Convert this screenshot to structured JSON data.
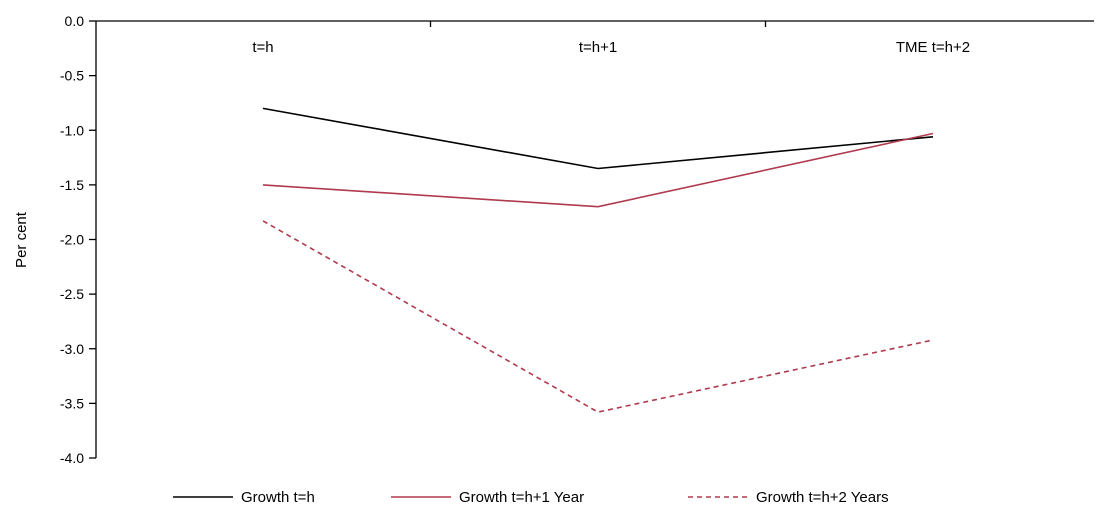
{
  "chart_data": {
    "type": "line",
    "categories": [
      "t=h",
      "t=h+1",
      "TME t=h+2"
    ],
    "ylabel": "Per cent",
    "ylim": [
      -4.0,
      0.0
    ],
    "yticks": [
      "0.0",
      "-0.5",
      "-1.0",
      "-1.5",
      "-2.0",
      "-2.5",
      "-3.0",
      "-3.5",
      "-4.0"
    ],
    "x_axis_position": "top",
    "grid": false,
    "legend_position": "bottom",
    "series": [
      {
        "name": "Growth t=h",
        "values": [
          -0.8,
          -1.35,
          -1.06
        ],
        "color": "#000000",
        "dash": "solid"
      },
      {
        "name": "Growth t=h+1  Year",
        "values": [
          -1.5,
          -1.7,
          -1.03
        ],
        "color": "#b03a4e",
        "dash": "solid"
      },
      {
        "name": "Growth t=h+2  Years",
        "values": [
          -1.83,
          -3.58,
          -2.92
        ],
        "color": "#b03a4e",
        "dash": "dashed"
      }
    ]
  }
}
